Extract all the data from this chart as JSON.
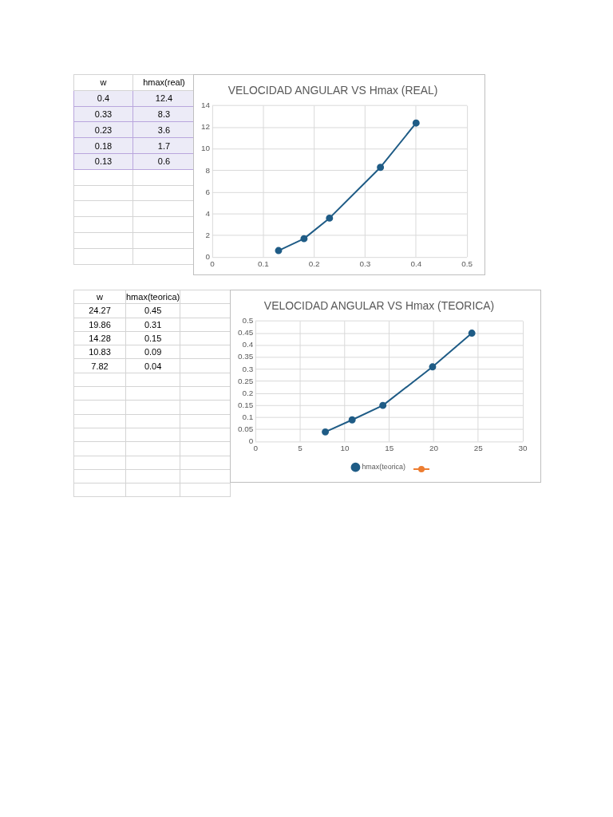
{
  "chart_data": [
    {
      "type": "other",
      "annotations": [
        "w",
        "hmax(real)",
        "0.4",
        "12.4",
        "0.33",
        "8.3",
        "0.23",
        "3.6",
        "0.18",
        "1.7",
        "0.13",
        "0.6"
      ]
    },
    {
      "type": "line",
      "title": "VELOCIDAD ANGULAR VS Hmax (REAL)",
      "marker": "circle",
      "grid": true,
      "series": [
        {
          "color": "#1f5c86",
          "x": [
            0.4,
            0.33,
            0.23,
            0.18,
            0.13
          ],
          "values": [
            12.4,
            8.3,
            3.6,
            1.7,
            0.6
          ]
        }
      ],
      "xlim": [
        0,
        0.5
      ],
      "xticks": [
        0,
        0.1,
        0.2,
        0.3,
        0.4,
        0.5
      ],
      "ylim": [
        0,
        14
      ],
      "yticks": [
        0,
        2,
        4,
        6,
        8,
        10,
        12,
        14
      ]
    },
    {
      "type": "other",
      "annotations": [
        "w",
        "hmax(teorica)",
        "24.27",
        "0.45",
        "19.86",
        "0.31",
        "14.28",
        "0.15",
        "10.83",
        "0.09",
        "7.82",
        "0.04"
      ]
    },
    {
      "type": "line",
      "title": "VELOCIDAD ANGULAR VS Hmax (TEORICA)",
      "marker": "circle",
      "grid": true,
      "legend": "bottom",
      "series": [
        {
          "name": "hmax(teorica)",
          "color": "#1f5c86",
          "x": [
            24.27,
            19.86,
            14.28,
            10.83,
            7.82
          ],
          "values": [
            0.45,
            0.31,
            0.15,
            0.09,
            0.04
          ]
        }
      ],
      "xlim": [
        0,
        30
      ],
      "xticks": [
        0,
        5,
        10,
        15,
        20,
        25,
        30
      ],
      "ylim": [
        0,
        0.5
      ],
      "yticks": [
        0,
        0.05,
        0.1,
        0.15,
        0.2,
        0.25,
        0.3,
        0.35,
        0.4,
        0.45,
        0.5
      ]
    }
  ]
}
